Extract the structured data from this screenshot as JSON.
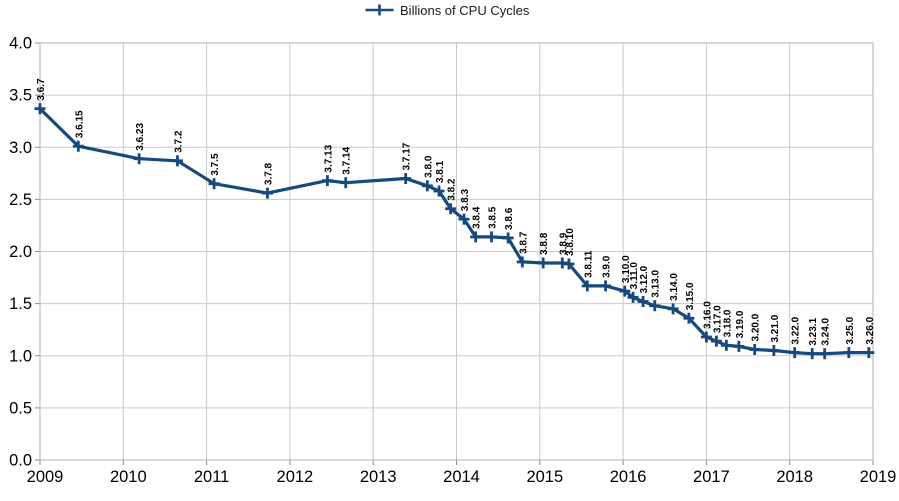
{
  "legend": {
    "series_label": "Billions of CPU Cycles"
  },
  "chart_data": {
    "type": "line",
    "title": "",
    "legend_position": "top-center",
    "grid": true,
    "line_color": "#17497d",
    "grid_color": "#c9c9c9",
    "border_color": "#b2b2b2",
    "tick_color": "#8c8c8c",
    "label_color": "#000000",
    "marker": "plus",
    "xlabel": "",
    "ylabel": "",
    "x_axis": {
      "min": 2009,
      "max": 2019,
      "tick_labels": [
        "2009",
        "2010",
        "2011",
        "2012",
        "2013",
        "2014",
        "2015",
        "2016",
        "2017",
        "2018",
        "2019"
      ]
    },
    "y_axis": {
      "min": 0.0,
      "max": 4.0,
      "step": 0.5,
      "tick_labels": [
        "4.0",
        "3.5",
        "3.0",
        "2.5",
        "2.0",
        "1.5",
        "1.0",
        "0.5",
        "0.0"
      ]
    },
    "series": [
      {
        "name": "Billions of CPU Cycles",
        "points": [
          {
            "label": "3.6.7",
            "x": 2009.0,
            "y": 3.37
          },
          {
            "label": "3.6.15",
            "x": 2009.46,
            "y": 3.01
          },
          {
            "label": "3.6.23",
            "x": 2010.19,
            "y": 2.89
          },
          {
            "label": "3.7.2",
            "x": 2010.65,
            "y": 2.87
          },
          {
            "label": "3.7.5",
            "x": 2011.09,
            "y": 2.65
          },
          {
            "label": "3.7.8",
            "x": 2011.73,
            "y": 2.56
          },
          {
            "label": "3.7.13",
            "x": 2012.45,
            "y": 2.68
          },
          {
            "label": "3.7.14",
            "x": 2012.67,
            "y": 2.66
          },
          {
            "label": "3.7.17",
            "x": 2013.39,
            "y": 2.7
          },
          {
            "label": "3.8.0",
            "x": 2013.65,
            "y": 2.63
          },
          {
            "label": "3.8.1",
            "x": 2013.79,
            "y": 2.58
          },
          {
            "label": "3.8.2",
            "x": 2013.93,
            "y": 2.41
          },
          {
            "label": "3.8.3",
            "x": 2014.09,
            "y": 2.31
          },
          {
            "label": "3.8.4",
            "x": 2014.23,
            "y": 2.14
          },
          {
            "label": "3.8.5",
            "x": 2014.42,
            "y": 2.14
          },
          {
            "label": "3.8.6",
            "x": 2014.62,
            "y": 2.13
          },
          {
            "label": "3.8.7",
            "x": 2014.79,
            "y": 1.9
          },
          {
            "label": "3.8.8",
            "x": 2015.04,
            "y": 1.89
          },
          {
            "label": "3.8.9",
            "x": 2015.27,
            "y": 1.89
          },
          {
            "label": "3.8.10",
            "x": 2015.35,
            "y": 1.88
          },
          {
            "label": "3.8.11",
            "x": 2015.57,
            "y": 1.67
          },
          {
            "label": "3.9.0",
            "x": 2015.79,
            "y": 1.67
          },
          {
            "label": "3.10.0",
            "x": 2016.02,
            "y": 1.62
          },
          {
            "label": "3.11.0",
            "x": 2016.12,
            "y": 1.56
          },
          {
            "label": "3.12.0",
            "x": 2016.24,
            "y": 1.52
          },
          {
            "label": "3.13.0",
            "x": 2016.38,
            "y": 1.48
          },
          {
            "label": "3.14.0",
            "x": 2016.6,
            "y": 1.45
          },
          {
            "label": "3.15.0",
            "x": 2016.79,
            "y": 1.36
          },
          {
            "label": "3.16.0",
            "x": 2017.0,
            "y": 1.18
          },
          {
            "label": "3.17.0",
            "x": 2017.12,
            "y": 1.14
          },
          {
            "label": "3.18.0",
            "x": 2017.24,
            "y": 1.1
          },
          {
            "label": "3.19.0",
            "x": 2017.39,
            "y": 1.09
          },
          {
            "label": "3.20.0",
            "x": 2017.58,
            "y": 1.06
          },
          {
            "label": "3.21.0",
            "x": 2017.81,
            "y": 1.05
          },
          {
            "label": "3.22.0",
            "x": 2018.06,
            "y": 1.03
          },
          {
            "label": "3.23.1",
            "x": 2018.27,
            "y": 1.02
          },
          {
            "label": "3.24.0",
            "x": 2018.42,
            "y": 1.02
          },
          {
            "label": "3.25.0",
            "x": 2018.71,
            "y": 1.03
          },
          {
            "label": "3.26.0",
            "x": 2018.95,
            "y": 1.03
          }
        ]
      }
    ]
  }
}
